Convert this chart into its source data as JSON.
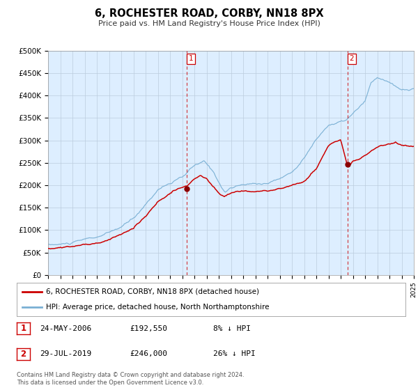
{
  "title": "6, ROCHESTER ROAD, CORBY, NN18 8PX",
  "subtitle": "Price paid vs. HM Land Registry's House Price Index (HPI)",
  "ylim": [
    0,
    500000
  ],
  "yticks": [
    0,
    50000,
    100000,
    150000,
    200000,
    250000,
    300000,
    350000,
    400000,
    450000,
    500000
  ],
  "ytick_labels": [
    "£0",
    "£50K",
    "£100K",
    "£150K",
    "£200K",
    "£250K",
    "£300K",
    "£350K",
    "£400K",
    "£450K",
    "£500K"
  ],
  "hpi_color": "#7ab0d4",
  "price_color": "#cc0000",
  "bg_color": "#ddeeff",
  "plot_bg": "#ffffff",
  "grid_color": "#bbccdd",
  "marker1_x": 2006.39,
  "marker1_y": 192550,
  "marker2_x": 2019.57,
  "marker2_y": 246000,
  "vline1_x": 2006.39,
  "vline2_x": 2019.57,
  "legend_label_red": "6, ROCHESTER ROAD, CORBY, NN18 8PX (detached house)",
  "legend_label_blue": "HPI: Average price, detached house, North Northamptonshire",
  "table_rows": [
    [
      "1",
      "24-MAY-2006",
      "£192,550",
      "8% ↓ HPI"
    ],
    [
      "2",
      "29-JUL-2019",
      "£246,000",
      "26% ↓ HPI"
    ]
  ],
  "footnote1": "Contains HM Land Registry data © Crown copyright and database right 2024.",
  "footnote2": "This data is licensed under the Open Government Licence v3.0.",
  "xmin": 1995,
  "xmax": 2025
}
